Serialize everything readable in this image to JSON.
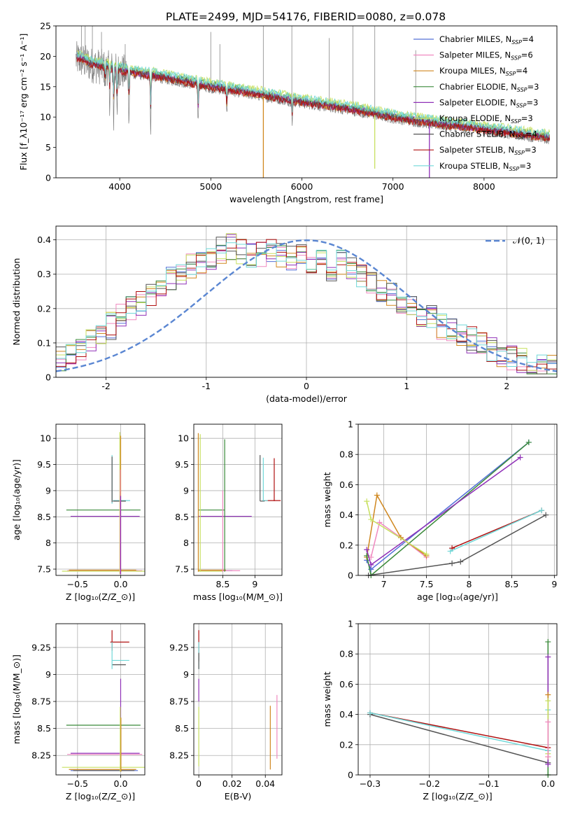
{
  "figure": {
    "title": "PLATE=2499, MJD=54176, FIBERID=0080, z=0.078"
  },
  "colors": {
    "c_miles": "#5470d8",
    "s_miles": "#f08ac0",
    "k_miles": "#d08820",
    "c_elodie": "#3a8a3a",
    "s_elodie": "#9030b8",
    "k_elodie": "#c8e060",
    "c_stelib": "#555555",
    "s_stelib": "#b01010",
    "k_stelib": "#70d8d8",
    "data": "#808080",
    "gauss": "#5a86d2"
  },
  "legend": {
    "models": [
      {
        "pre": "Chabrier MILES, N",
        "n": "4",
        "color": "c_miles"
      },
      {
        "pre": "Salpeter MILES, N",
        "n": "6",
        "color": "s_miles"
      },
      {
        "pre": "Kroupa MILES, N",
        "n": "4",
        "color": "k_miles"
      },
      {
        "pre": "Chabrier ELODIE, N",
        "n": "3",
        "color": "c_elodie"
      },
      {
        "pre": "Salpeter ELODIE, N",
        "n": "3",
        "color": "s_elodie"
      },
      {
        "pre": "Kroupa ELODIE, N",
        "n": "3",
        "color": "k_elodie"
      },
      {
        "pre": "Chabrier STELIB, N",
        "n": "4",
        "color": "c_stelib"
      },
      {
        "pre": "Salpeter STELIB, N",
        "n": "3",
        "color": "s_stelib"
      },
      {
        "pre": "Kroupa STELIB, N",
        "n": "3",
        "color": "k_stelib"
      }
    ],
    "ssp_sub": "SSP",
    "gauss_label": "𝒩(0, 1)"
  },
  "chart_data": [
    {
      "id": "spectrum",
      "type": "line",
      "xlabel": "wavelength [Angstrom, rest frame]",
      "ylabel": "Flux [f_λ10⁻¹⁷ erg cm⁻² s⁻¹ A⁻¹]",
      "xlim": [
        3300,
        8800
      ],
      "ylim": [
        0,
        25
      ],
      "xticks": [
        4000,
        5000,
        6000,
        7000,
        8000
      ],
      "yticks": [
        0,
        5,
        10,
        15,
        20,
        25
      ],
      "grid": false,
      "legend_position": "top-right",
      "continuum": [
        [
          3550,
          19.5
        ],
        [
          3700,
          18.5
        ],
        [
          3900,
          18.0
        ],
        [
          4100,
          17.2
        ],
        [
          4300,
          16.8
        ],
        [
          4600,
          16.0
        ],
        [
          5000,
          14.8
        ],
        [
          5500,
          13.6
        ],
        [
          6000,
          12.3
        ],
        [
          6500,
          11.2
        ],
        [
          7000,
          9.8
        ],
        [
          7500,
          8.7
        ],
        [
          8000,
          7.8
        ],
        [
          8500,
          6.8
        ],
        [
          8700,
          6.4
        ]
      ],
      "absorption_lines": [
        [
          3840,
          3
        ],
        [
          3890,
          5
        ],
        [
          3934,
          9
        ],
        [
          3970,
          8
        ],
        [
          4102,
          7
        ],
        [
          4340,
          9
        ],
        [
          4861,
          6
        ],
        [
          5175,
          4
        ],
        [
          5893,
          4
        ]
      ],
      "spikes": [
        [
          3580,
          25
        ],
        [
          3620,
          25
        ],
        [
          3700,
          25
        ],
        [
          3800,
          24
        ],
        [
          4060,
          22
        ],
        [
          5000,
          24
        ],
        [
          5100,
          22
        ],
        [
          5577,
          25
        ],
        [
          5890,
          25
        ],
        [
          6300,
          23
        ],
        [
          6560,
          25
        ],
        [
          6800,
          25
        ],
        [
          7250,
          21
        ]
      ],
      "model_glitches": [
        [
          5577,
          "k_miles",
          0
        ],
        [
          6800,
          "k_elodie",
          1.5
        ],
        [
          7400,
          "s_elodie",
          0
        ]
      ],
      "model_offsets": {
        "c_miles": 0.4,
        "s_miles": 0.2,
        "k_miles": 0.1,
        "c_elodie": 0.6,
        "s_elodie": 0.3,
        "k_elodie": 1.0,
        "c_stelib": 0.2,
        "s_stelib": 0.0,
        "k_stelib": 0.9
      }
    },
    {
      "id": "residuals",
      "type": "histogram",
      "xlabel": "(data-model)/error",
      "ylabel": "Normed distribution",
      "xlim": [
        -2.5,
        2.5
      ],
      "ylim": [
        0,
        0.44
      ],
      "xticks": [
        -2,
        -1,
        0,
        1,
        2
      ],
      "yticks": [
        0.0,
        0.1,
        0.2,
        0.3,
        0.4
      ],
      "grid": true,
      "legend_position": "top-right",
      "bins": [
        -2.5,
        -2.4,
        -2.3,
        -2.2,
        -2.1,
        -2.0,
        -1.9,
        -1.8,
        -1.7,
        -1.6,
        -1.5,
        -1.4,
        -1.3,
        -1.2,
        -1.1,
        -1.0,
        -0.9,
        -0.8,
        -0.7,
        -0.6,
        -0.5,
        -0.4,
        -0.3,
        -0.2,
        -0.1,
        0.0,
        0.1,
        0.2,
        0.3,
        0.4,
        0.5,
        0.6,
        0.7,
        0.8,
        0.9,
        1.0,
        1.1,
        1.2,
        1.3,
        1.4,
        1.5,
        1.6,
        1.7,
        1.8,
        1.9,
        2.0,
        2.1,
        2.2,
        2.3,
        2.4,
        2.5
      ],
      "envelope": [
        0.05,
        0.06,
        0.08,
        0.1,
        0.12,
        0.15,
        0.18,
        0.2,
        0.22,
        0.24,
        0.27,
        0.29,
        0.31,
        0.32,
        0.34,
        0.35,
        0.37,
        0.38,
        0.37,
        0.36,
        0.36,
        0.37,
        0.36,
        0.35,
        0.35,
        0.34,
        0.33,
        0.32,
        0.33,
        0.32,
        0.3,
        0.28,
        0.26,
        0.24,
        0.22,
        0.2,
        0.18,
        0.17,
        0.15,
        0.14,
        0.12,
        0.11,
        0.1,
        0.08,
        0.07,
        0.06,
        0.05,
        0.04,
        0.03,
        0.03
      ],
      "gaussian": {
        "mu": 0,
        "sigma": 1
      }
    },
    {
      "id": "age_vs_Z",
      "type": "scatter",
      "xlabel": "Z [log₁₀(Z/Z_⊙)]",
      "ylabel": "age [log₁₀(age/yr)]",
      "xlim": [
        -0.75,
        0.28
      ],
      "ylim": [
        7.38,
        10.27
      ],
      "xticks": [
        -0.5,
        0.0
      ],
      "xtick_labels": [
        "−0.5",
        "0.0"
      ],
      "yticks": [
        7.5,
        8.0,
        8.5,
        9.0,
        9.5,
        10.0
      ],
      "grid": true,
      "segments": [
        [
          "c_elodie",
          "h",
          8.63,
          -0.63,
          0.23
        ],
        [
          "s_elodie",
          "h",
          8.51,
          -0.58,
          0.22
        ],
        [
          "c_miles",
          "h",
          7.47,
          -0.58,
          0.2
        ],
        [
          "s_miles",
          "h",
          7.47,
          -0.62,
          0.25
        ],
        [
          "k_miles",
          "h",
          7.48,
          -0.6,
          0.18
        ],
        [
          "k_elodie",
          "h",
          7.46,
          -0.68,
          0.28
        ],
        [
          "k_stelib",
          "h",
          8.81,
          -0.09,
          0.11
        ],
        [
          "c_stelib",
          "h",
          8.8,
          -0.09,
          0.06
        ],
        [
          "k_stelib",
          "v",
          -0.1,
          8.75,
          9.68
        ],
        [
          "c_stelib",
          "v",
          -0.1,
          8.78,
          9.65
        ],
        [
          "k_elodie",
          "v",
          -0.01,
          7.4,
          10.12
        ],
        [
          "k_miles",
          "v",
          0.0,
          7.4,
          10.05
        ],
        [
          "s_miles",
          "v",
          -0.005,
          7.4,
          9.4
        ],
        [
          "s_elodie",
          "v",
          0.0,
          7.4,
          8.9
        ]
      ]
    },
    {
      "id": "age_vs_mass",
      "type": "scatter",
      "xlabel": "mass [log₁₀(M/M_⊙)]",
      "ylabel": "",
      "xlim": [
        8.05,
        9.42
      ],
      "ylim": [
        7.38,
        10.27
      ],
      "xticks": [
        8.5,
        9.0
      ],
      "yticks": [
        7.5,
        8.0,
        8.5,
        9.0,
        9.5,
        10.0
      ],
      "grid": true,
      "segments": [
        [
          "c_elodie",
          "h",
          8.63,
          8.12,
          8.53
        ],
        [
          "s_elodie",
          "h",
          8.51,
          8.12,
          8.95
        ],
        [
          "c_miles",
          "h",
          7.47,
          8.12,
          8.65
        ],
        [
          "s_miles",
          "h",
          7.47,
          8.12,
          8.77
        ],
        [
          "k_miles",
          "h",
          7.48,
          8.12,
          8.55
        ],
        [
          "k_elodie",
          "h",
          7.46,
          8.12,
          8.5
        ],
        [
          "s_stelib",
          "h",
          8.81,
          9.12,
          9.4
        ],
        [
          "k_stelib",
          "h",
          8.81,
          9.12,
          9.2
        ],
        [
          "c_stelib",
          "h",
          8.8,
          9.08,
          9.15
        ],
        [
          "k_miles",
          "v",
          8.12,
          7.45,
          10.1
        ],
        [
          "k_elodie",
          "v",
          8.15,
          7.45,
          10.08
        ],
        [
          "c_elodie",
          "v",
          8.53,
          7.45,
          9.98
        ],
        [
          "s_miles",
          "v",
          8.5,
          7.45,
          9.0
        ],
        [
          "c_stelib",
          "v",
          9.08,
          8.8,
          9.68
        ],
        [
          "k_stelib",
          "v",
          9.13,
          8.8,
          9.63
        ],
        [
          "s_stelib",
          "v",
          9.3,
          8.8,
          9.62
        ]
      ]
    },
    {
      "id": "massweight_vs_age",
      "type": "line",
      "xlabel": "age [log₁₀(age/yr)]",
      "ylabel": "mass weight",
      "xlim": [
        6.7,
        9.03
      ],
      "ylim": [
        0,
        1
      ],
      "xticks": [
        7.0,
        7.5,
        8.0,
        8.5,
        9.0
      ],
      "yticks": [
        0.0,
        0.2,
        0.4,
        0.6,
        0.8,
        1.0
      ],
      "grid": true,
      "series": [
        {
          "color": "c_miles",
          "points": [
            [
              6.8,
              0.1
            ],
            [
              6.85,
              0.04
            ],
            [
              8.7,
              0.88
            ]
          ]
        },
        {
          "color": "s_miles",
          "points": [
            [
              6.85,
              0.12
            ],
            [
              6.95,
              0.35
            ],
            [
              7.2,
              0.25
            ],
            [
              7.5,
              0.12
            ]
          ]
        },
        {
          "color": "k_miles",
          "points": [
            [
              6.8,
              0.12
            ],
            [
              6.92,
              0.53
            ],
            [
              7.2,
              0.25
            ],
            [
              7.5,
              0.13
            ]
          ]
        },
        {
          "color": "c_elodie",
          "points": [
            [
              6.8,
              0.13
            ],
            [
              6.85,
              0.0
            ],
            [
              8.7,
              0.88
            ]
          ]
        },
        {
          "color": "s_elodie",
          "points": [
            [
              6.8,
              0.17
            ],
            [
              6.85,
              0.07
            ],
            [
              8.6,
              0.78
            ]
          ]
        },
        {
          "color": "k_elodie",
          "points": [
            [
              6.8,
              0.49
            ],
            [
              6.85,
              0.37
            ],
            [
              7.5,
              0.14
            ]
          ]
        },
        {
          "color": "c_stelib",
          "points": [
            [
              6.82,
              0.0
            ],
            [
              7.8,
              0.08
            ],
            [
              7.9,
              0.09
            ],
            [
              8.9,
              0.4
            ]
          ]
        },
        {
          "color": "s_stelib",
          "points": [
            [
              7.8,
              0.18
            ],
            [
              8.85,
              0.43
            ]
          ]
        },
        {
          "color": "k_stelib",
          "points": [
            [
              7.78,
              0.16
            ],
            [
              8.85,
              0.43
            ]
          ]
        }
      ]
    },
    {
      "id": "mass_vs_Z",
      "type": "scatter",
      "xlabel": "Z [log₁₀(Z/Z_⊙)]",
      "ylabel": "mass [log₁₀(M/M_⊙)]",
      "xlim": [
        -0.75,
        0.28
      ],
      "ylim": [
        8.07,
        9.47
      ],
      "xticks": [
        -0.5,
        0.0
      ],
      "xtick_labels": [
        "−0.5",
        "0.0"
      ],
      "yticks": [
        8.25,
        8.5,
        8.75,
        9.0,
        9.25
      ],
      "grid": true,
      "segments": [
        [
          "c_elodie",
          "h",
          8.53,
          -0.63,
          0.23
        ],
        [
          "s_elodie",
          "h",
          8.27,
          -0.58,
          0.22
        ],
        [
          "s_miles",
          "h",
          8.26,
          -0.62,
          0.25
        ],
        [
          "k_miles",
          "h",
          8.12,
          -0.6,
          0.18
        ],
        [
          "c_miles",
          "h",
          8.11,
          -0.58,
          0.2
        ],
        [
          "k_elodie",
          "h",
          8.14,
          -0.68,
          0.28
        ],
        [
          "c_stelib",
          "h",
          8.11,
          -0.55,
          0.16
        ],
        [
          "s_stelib",
          "h",
          9.3,
          -0.12,
          0.1
        ],
        [
          "k_stelib",
          "h",
          9.13,
          -0.1,
          0.1
        ],
        [
          "c_stelib",
          "h",
          9.09,
          -0.1,
          0.06
        ],
        [
          "s_stelib",
          "v",
          -0.1,
          9.22,
          9.41
        ],
        [
          "k_stelib",
          "v",
          -0.1,
          9.05,
          9.3
        ],
        [
          "s_elodie",
          "v",
          0.0,
          8.1,
          8.96
        ],
        [
          "k_elodie",
          "v",
          -0.005,
          8.1,
          8.7
        ],
        [
          "k_miles",
          "v",
          0.003,
          8.1,
          8.6
        ]
      ]
    },
    {
      "id": "mass_vs_ebv",
      "type": "scatter",
      "xlabel": "E(B-V)",
      "ylabel": "",
      "xlim": [
        -0.003,
        0.05
      ],
      "ylim": [
        8.07,
        9.47
      ],
      "xticks": [
        0.0,
        0.02,
        0.04
      ],
      "yticks": [
        8.25,
        8.5,
        8.75,
        9.0,
        9.25
      ],
      "grid": true,
      "segments": [
        [
          "s_stelib",
          "v",
          0.0,
          9.12,
          9.41
        ],
        [
          "k_stelib",
          "v",
          0.0,
          9.05,
          9.3
        ],
        [
          "c_stelib",
          "v",
          0.0,
          9.05,
          9.2
        ],
        [
          "s_elodie",
          "v",
          0.0,
          8.75,
          8.96
        ],
        [
          "k_elodie",
          "v",
          0.0,
          8.15,
          8.7
        ],
        [
          "k_miles",
          "v",
          0.043,
          8.12,
          8.71
        ],
        [
          "s_miles",
          "v",
          0.047,
          8.22,
          8.81
        ]
      ]
    },
    {
      "id": "massweight_vs_Z",
      "type": "line",
      "xlabel": "Z [log₁₀(Z/Z_⊙)]",
      "ylabel": "mass weight",
      "xlim": [
        -0.32,
        0.015
      ],
      "ylim": [
        0,
        1
      ],
      "xticks": [
        -0.3,
        -0.2,
        -0.1,
        0.0
      ],
      "xtick_labels": [
        "−0.3",
        "−0.2",
        "−0.1",
        "0.0"
      ],
      "yticks": [
        0.0,
        0.2,
        0.4,
        0.6,
        0.8,
        1.0
      ],
      "grid": true,
      "series": [
        {
          "color": "c_stelib",
          "points": [
            [
              -0.3,
              0.4
            ],
            [
              0.0,
              0.08
            ],
            [
              0.0,
              0.16
            ]
          ]
        },
        {
          "color": "s_stelib",
          "points": [
            [
              -0.3,
              0.41
            ],
            [
              0.0,
              0.18
            ]
          ]
        },
        {
          "color": "k_stelib",
          "points": [
            [
              -0.3,
              0.41
            ],
            [
              0.0,
              0.16
            ],
            [
              0.0,
              0.43
            ]
          ]
        },
        {
          "color": "c_elodie",
          "points": [
            [
              0.0,
              0.0
            ],
            [
              0.0,
              0.88
            ]
          ]
        },
        {
          "color": "s_elodie",
          "points": [
            [
              0.0,
              0.07
            ],
            [
              0.0,
              0.78
            ]
          ]
        },
        {
          "color": "k_miles",
          "points": [
            [
              0.0,
              0.12
            ],
            [
              0.0,
              0.53
            ]
          ]
        },
        {
          "color": "k_elodie",
          "points": [
            [
              0.0,
              0.14
            ],
            [
              0.0,
              0.49
            ]
          ]
        },
        {
          "color": "s_miles",
          "points": [
            [
              0.0,
              0.12
            ],
            [
              0.0,
              0.35
            ]
          ]
        }
      ]
    }
  ]
}
